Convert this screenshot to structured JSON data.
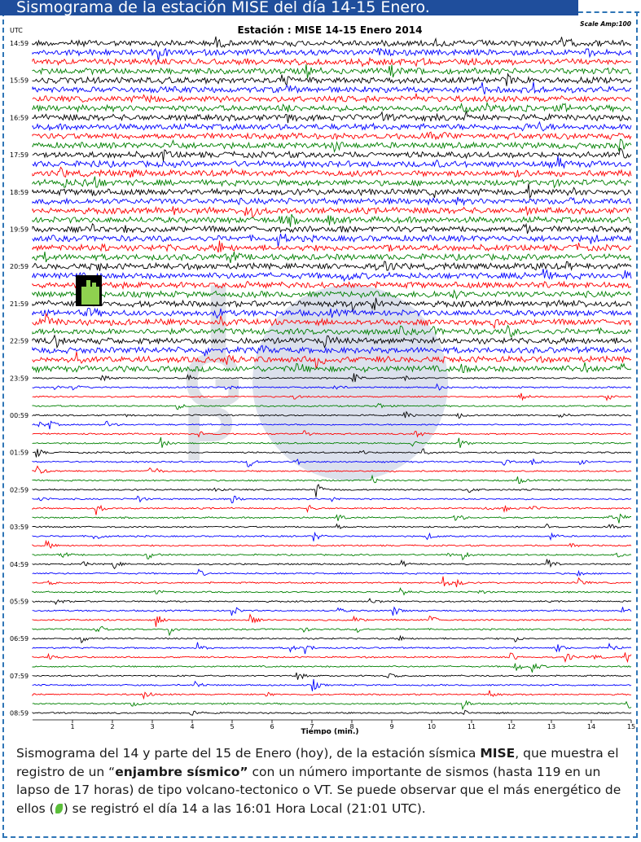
{
  "banner": {
    "title": "Sismograma de la estación MISE del día 14-15 Enero."
  },
  "seismogram": {
    "title": "Estación : MISE 14-15 Enero 2014",
    "scale": "Scale Amp:100",
    "utc_label": "UTC",
    "xlabel": "Tiempo (min.)",
    "x_ticks": [
      "1",
      "2",
      "3",
      "4",
      "5",
      "6",
      "7",
      "8",
      "9",
      "10",
      "11",
      "12",
      "13",
      "14",
      "15"
    ],
    "hour_labels": [
      "14:59",
      "15:59",
      "16:59",
      "17:59",
      "18:59",
      "19:59",
      "20:59",
      "21:59",
      "22:59",
      "23:59",
      "00:59",
      "01:59",
      "02:59",
      "03:59",
      "04:59",
      "05:59",
      "06:59",
      "07:59",
      "08:59"
    ],
    "trace_colors": [
      "#000000",
      "#0000ff",
      "#ff0000",
      "#008000"
    ],
    "traces_per_hour": 4,
    "watermark_letters": [
      "I",
      "G",
      "P"
    ],
    "marker_icon": "hand-pointer-icon"
  },
  "caption": {
    "p1": "Sismograma del 14 y parte del 15 de Enero (hoy), de la estación sísmica ",
    "station": "MISE",
    "p2": ", que muestra el registro de un “",
    "swarm": "enjambre sísmico”",
    "p3": " con un número importante de sismos (hasta 119 en un lapso de 17 horas) de tipo volcano-tectonico o VT. Se puede observar que el más energético de ellos (",
    "leaf_icon": "leaf-icon",
    "p4": ") se registró el día 14 a las 16:01 Hora Local (21:01 UTC)."
  }
}
